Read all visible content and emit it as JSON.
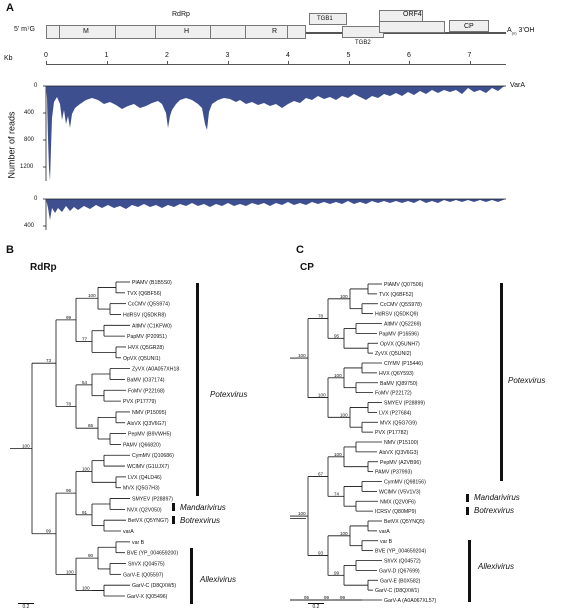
{
  "panel_a": {
    "letter": "A",
    "five_prime": "5’ m⁷G",
    "three_prime": "A",
    "three_prime_sub": "(n)",
    "three_prime_end": "3’OH",
    "rdrp_label": "RdRp",
    "domains": [
      "M",
      "H",
      "R"
    ],
    "orfs": {
      "tgb1": "TGB1",
      "tgb2": "TGB2",
      "orf4": "ORF4",
      "cp": "CP"
    },
    "kb_label": "Kb",
    "kb_ticks": [
      "0",
      "1",
      "2",
      "3",
      "4",
      "5",
      "6",
      "7"
    ],
    "y_axis_label": "Number of reads",
    "top_y_ticks": [
      "0",
      "400",
      "800",
      "1200"
    ],
    "bottom_y_ticks": [
      "0",
      "400"
    ],
    "series_label": "VarA"
  },
  "panel_b": {
    "letter": "B",
    "title": "RdRp",
    "taxa": [
      "PlAMV (B1B5S0)",
      "TVX (Q6BF56)",
      "CcCMV (Q5S974)",
      "HdRSV (Q5DKR8)",
      "AltMV (C1KFW0)",
      "PapMV (P20951)",
      "HVX (Q5GR28)",
      "OpVX (Q5UNI1)",
      "ZyVX (A0A057XH18",
      "BaMV (O37174)",
      "FoMV (P22168)",
      "PVX (P17779)",
      "NMV (P15095)",
      "AlsVX (Q3V6G7)",
      "PepMV (B9VWH5)",
      "PAMV (Q66820)",
      "CymMV (Q10686)",
      "WClMV (G1UJX7)",
      "LVX (Q4LD46)",
      "MVX (Q5G7H3)",
      "SMYEV (P28897)",
      "NVX (Q2V050)",
      "BetVX (Q5YNG7)",
      "varA",
      "var B",
      "BVE (YP_004659200)",
      "ShVX (Q04575)",
      "GarV-E (Q05597)",
      "GarV-C (D8QXW5)",
      "GarV-X (Q05496)"
    ],
    "bootstrap": [
      "100",
      "77",
      "54",
      "65",
      "100",
      "91",
      "90",
      "100",
      "99",
      "78",
      "96",
      "100",
      "73",
      "99",
      "100",
      "96",
      "100",
      "100"
    ],
    "genera": [
      "Potexvirus",
      "Mandarivirus",
      "Botrexvirus",
      "Allexivirus"
    ],
    "scale": "0.2"
  },
  "panel_c": {
    "letter": "C",
    "title": "CP",
    "taxa": [
      "PlAMV (Q07506)",
      "TVX (Q6BF52)",
      "CcCMV (Q5S978)",
      "HdRSV (Q5DKQ9)",
      "AltMV (Q52269)",
      "PapMV (P16596)",
      "OpVX (Q5UNH7)",
      "ZyVX (Q5UNI2)",
      "ClYMV (P15446)",
      "HVX (Q6Y593)",
      "BaMV (Q89750)",
      "FoMV (P22172)",
      "SMYEV (P28899)",
      "LVX (P27684)",
      "MVX (Q5G7G9)",
      "PVX (P17782)",
      "NMV (P15100)",
      "AlsVX (Q3V6G3)",
      "PepMV (A2VB96)",
      "PAMV (P37993)",
      "CymMV (Q98156)",
      "WClMV (V5V1V3)",
      "NMX (Q2V0F6)",
      "ICRSV (Q80MP9)",
      "BetVX (Q5YNQ5)",
      "varA",
      "var B",
      "BVE (YP_004659204)",
      "ShVX (Q04572)",
      "GarV-D (Q67699)",
      "GarV-E (B0X582)",
      "GarV-C (D8QXW1)",
      "GarV-A (A0A067XL57)"
    ],
    "bootstrap": [
      "100",
      "95",
      "100",
      "100",
      "100",
      "74",
      "100",
      "99",
      "99",
      "78",
      "100",
      "67",
      "93",
      "99",
      "100",
      "100",
      "95"
    ],
    "genera": [
      "Potexvirus",
      "Mandarivirus",
      "Botrexvirus",
      "Allexivirus"
    ],
    "scale": "0.2"
  },
  "colors": {
    "coverage": "#3d4f8f",
    "tree": "#111111"
  }
}
